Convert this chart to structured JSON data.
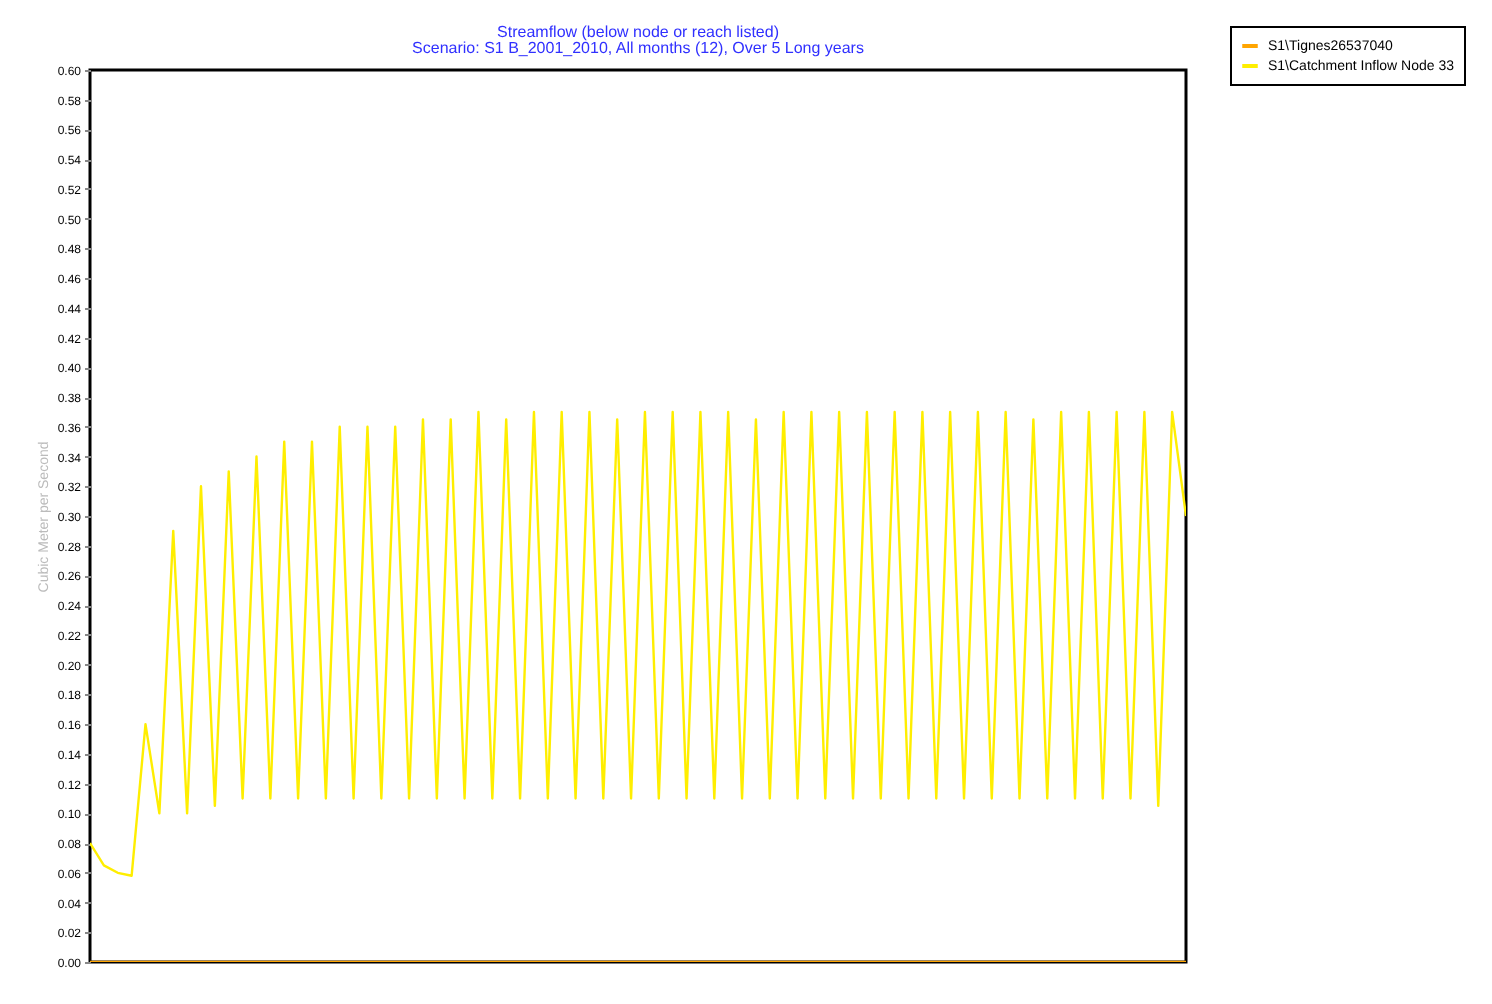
{
  "chart_data": {
    "type": "line",
    "title": "Streamflow (below node or reach listed)",
    "subtitle": "Scenario: S1 B_2001_2010, All months (12), Over 5 Long years",
    "ylabel": "Cubic Meter per Second",
    "categories": [
      null,
      null,
      null,
      null,
      null,
      null,
      null,
      null,
      null,
      null,
      null,
      null,
      null,
      null,
      null,
      null,
      null,
      null,
      null,
      null,
      null,
      null,
      null,
      null,
      null,
      null,
      null,
      null,
      null,
      null,
      null,
      null,
      null,
      null,
      null,
      null,
      null,
      null,
      null,
      null,
      null,
      null,
      null,
      null,
      null,
      null,
      null,
      null,
      null,
      null,
      null,
      null,
      null,
      null,
      null,
      null,
      null,
      null,
      null,
      null,
      null,
      null,
      null,
      null,
      null,
      null,
      null,
      null,
      null,
      null,
      null,
      null,
      null,
      null,
      null,
      null,
      null,
      null,
      null,
      null
    ],
    "series": [
      {
        "name": "S1\\Tignes26537040",
        "color": "#ffa500",
        "values": [
          0,
          0,
          0,
          0,
          0,
          0,
          0,
          0,
          0,
          0,
          0,
          0,
          0,
          0,
          0,
          0,
          0,
          0,
          0,
          0,
          0,
          0,
          0,
          0,
          0,
          0,
          0,
          0,
          0,
          0,
          0,
          0,
          0,
          0,
          0,
          0,
          0,
          0,
          0,
          0,
          0,
          0,
          0,
          0,
          0,
          0,
          0,
          0,
          0,
          0,
          0,
          0,
          0,
          0,
          0,
          0,
          0,
          0,
          0,
          0,
          0,
          0,
          0,
          0,
          0,
          0,
          0,
          0,
          0,
          0,
          0,
          0,
          0,
          0,
          0,
          0,
          0,
          0,
          0,
          0
        ]
      },
      {
        "name": "S1\\Catchment Inflow Node 33",
        "color": "#ffee00",
        "values": [
          0.08,
          0.065,
          0.06,
          0.058,
          0.16,
          0.1,
          0.29,
          0.1,
          0.32,
          0.105,
          0.33,
          0.11,
          0.34,
          0.11,
          0.35,
          0.11,
          0.35,
          0.11,
          0.36,
          0.11,
          0.36,
          0.11,
          0.36,
          0.11,
          0.365,
          0.11,
          0.365,
          0.11,
          0.37,
          0.11,
          0.365,
          0.11,
          0.37,
          0.11,
          0.37,
          0.11,
          0.37,
          0.11,
          0.365,
          0.11,
          0.37,
          0.11,
          0.37,
          0.11,
          0.37,
          0.11,
          0.37,
          0.11,
          0.365,
          0.11,
          0.37,
          0.11,
          0.37,
          0.11,
          0.37,
          0.11,
          0.37,
          0.11,
          0.37,
          0.11,
          0.37,
          0.11,
          0.37,
          0.11,
          0.37,
          0.11,
          0.37,
          0.11,
          0.365,
          0.11,
          0.37,
          0.11,
          0.37,
          0.11,
          0.37,
          0.11,
          0.37,
          0.105,
          0.37,
          0.3
        ]
      }
    ],
    "ylim": [
      0,
      0.6
    ],
    "yticks": [
      {
        "value": 0,
        "label": "0.00"
      },
      {
        "value": 0.02,
        "label": "0.02"
      },
      {
        "value": 0.04,
        "label": "0.04"
      },
      {
        "value": 0.06,
        "label": "0.06"
      },
      {
        "value": 0.08,
        "label": "0.08"
      },
      {
        "value": 0.1,
        "label": "0.10"
      },
      {
        "value": 0.12,
        "label": "0.12"
      },
      {
        "value": 0.14,
        "label": "0.14"
      },
      {
        "value": 0.16,
        "label": "0.16"
      },
      {
        "value": 0.18,
        "label": "0.18"
      },
      {
        "value": 0.2,
        "label": "0.20"
      },
      {
        "value": 0.22,
        "label": "0.22"
      },
      {
        "value": 0.24,
        "label": "0.24"
      },
      {
        "value": 0.26,
        "label": "0.26"
      },
      {
        "value": 0.28,
        "label": "0.28"
      },
      {
        "value": 0.3,
        "label": "0.30"
      },
      {
        "value": 0.32,
        "label": "0.32"
      },
      {
        "value": 0.34,
        "label": "0.34"
      },
      {
        "value": 0.36,
        "label": "0.36"
      },
      {
        "value": 0.38,
        "label": "0.38"
      },
      {
        "value": 0.4,
        "label": "0.40"
      },
      {
        "value": 0.42,
        "label": "0.42"
      },
      {
        "value": 0.44,
        "label": "0.44"
      },
      {
        "value": 0.46,
        "label": "0.46"
      },
      {
        "value": 0.48,
        "label": "0.48"
      },
      {
        "value": 0.5,
        "label": "0.50"
      },
      {
        "value": 0.52,
        "label": "0.52"
      },
      {
        "value": 0.54,
        "label": "0.54"
      },
      {
        "value": 0.56,
        "label": "0.56"
      },
      {
        "value": 0.58,
        "label": "0.58"
      },
      {
        "value": 0.6,
        "label": "0.60"
      }
    ],
    "legend": "top right",
    "grid": false,
    "marker": "none",
    "line_style": "solid"
  }
}
